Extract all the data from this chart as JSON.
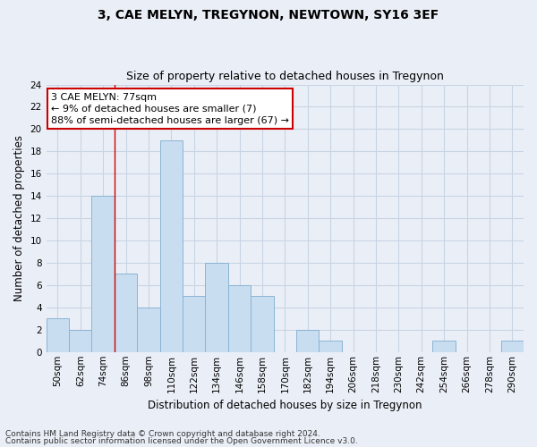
{
  "title": "3, CAE MELYN, TREGYNON, NEWTOWN, SY16 3EF",
  "subtitle": "Size of property relative to detached houses in Tregynon",
  "xlabel": "Distribution of detached houses by size in Tregynon",
  "ylabel": "Number of detached properties",
  "bin_labels": [
    "50sqm",
    "62sqm",
    "74sqm",
    "86sqm",
    "98sqm",
    "110sqm",
    "122sqm",
    "134sqm",
    "146sqm",
    "158sqm",
    "170sqm",
    "182sqm",
    "194sqm",
    "206sqm",
    "218sqm",
    "230sqm",
    "242sqm",
    "254sqm",
    "266sqm",
    "278sqm",
    "290sqm"
  ],
  "bar_values": [
    3,
    2,
    14,
    7,
    4,
    19,
    5,
    8,
    6,
    5,
    0,
    2,
    1,
    0,
    0,
    0,
    0,
    1,
    0,
    0,
    1
  ],
  "bar_color": "#c9ddf0",
  "bar_edge_color": "#8ab4d4",
  "grid_color": "#c8d4e4",
  "background_color": "#eaeff7",
  "annotation_line1": "3 CAE MELYN: 77sqm",
  "annotation_line2": "← 9% of detached houses are smaller (7)",
  "annotation_line3": "88% of semi-detached houses are larger (67) →",
  "annotation_box_color": "#ffffff",
  "annotation_box_edge": "#cc0000",
  "vline_x": 2.5,
  "vline_color": "#cc0000",
  "ylim": [
    0,
    24
  ],
  "yticks": [
    0,
    2,
    4,
    6,
    8,
    10,
    12,
    14,
    16,
    18,
    20,
    22,
    24
  ],
  "footer_line1": "Contains HM Land Registry data © Crown copyright and database right 2024.",
  "footer_line2": "Contains public sector information licensed under the Open Government Licence v3.0.",
  "title_fontsize": 10,
  "subtitle_fontsize": 9,
  "xlabel_fontsize": 8.5,
  "ylabel_fontsize": 8.5,
  "tick_fontsize": 7.5,
  "annotation_fontsize": 8,
  "footer_fontsize": 6.5
}
